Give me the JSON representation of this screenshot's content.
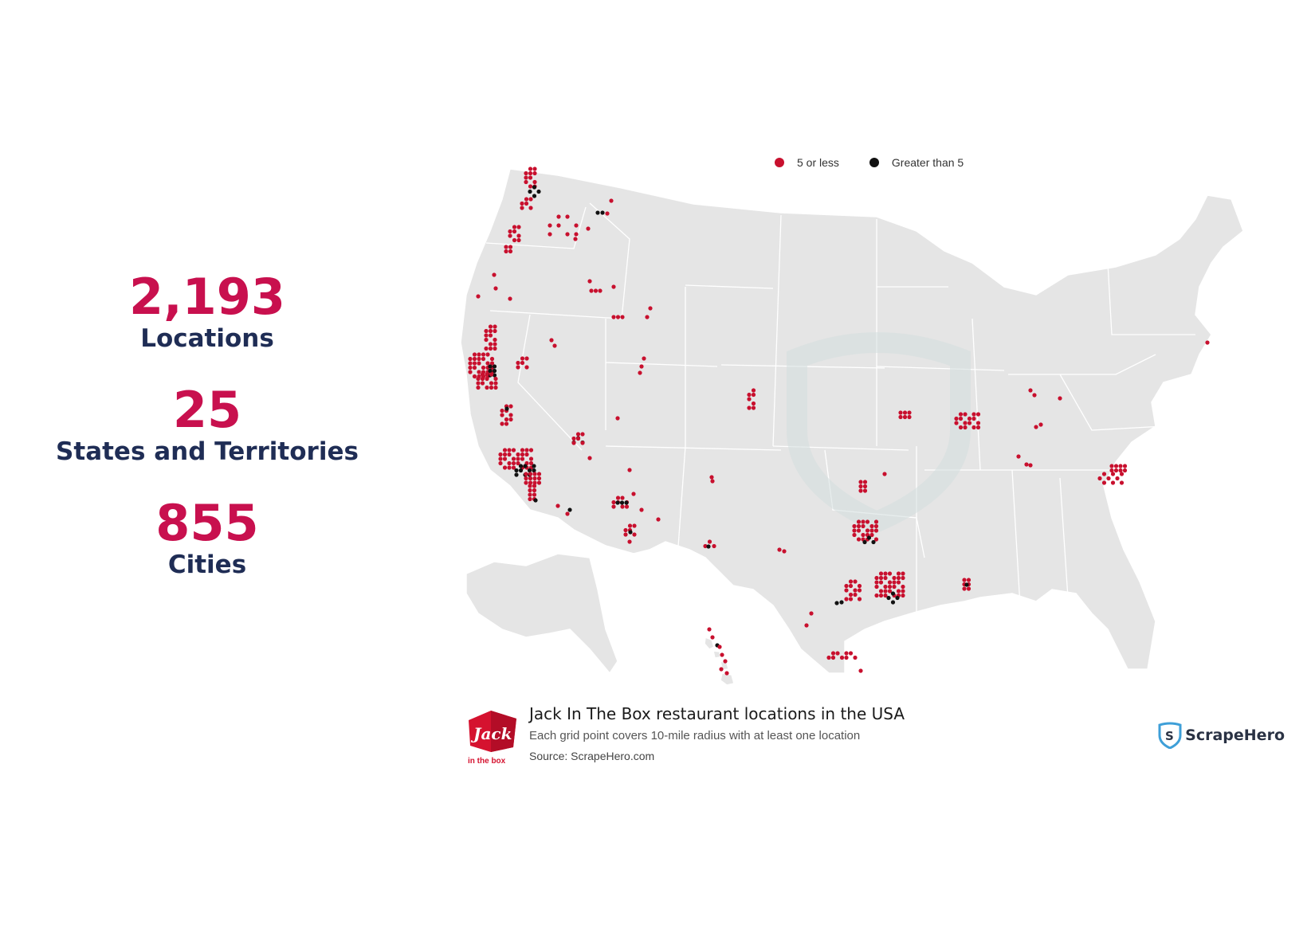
{
  "stats": {
    "locations": {
      "value": "2,193",
      "label": "Locations"
    },
    "states": {
      "value": "25",
      "label": "States and Territories"
    },
    "cities": {
      "value": "855",
      "label": "Cities"
    }
  },
  "legend": {
    "small": {
      "label": "5 or less",
      "color": "#c8102e"
    },
    "large": {
      "label": "Greater than 5",
      "color": "#111111"
    }
  },
  "caption": {
    "title": "Jack In The Box restaurant locations in the USA",
    "subtitle": "Each grid point covers 10-mile radius with at least one location",
    "source": "Source: ScrapeHero.com"
  },
  "brand": {
    "logo_line1": "Jack",
    "logo_line2": "in the box",
    "color": "#d5122f"
  },
  "credit": {
    "name": "ScrapeHero"
  },
  "map": {
    "land_color": "#e5e5e5",
    "border_color": "#ffffff",
    "clusters": [
      {
        "region": "Seattle-Tacoma, WA",
        "density": "high"
      },
      {
        "region": "Portland, OR",
        "density": "medium"
      },
      {
        "region": "Spokane, WA",
        "density": "low"
      },
      {
        "region": "Boise, ID",
        "density": "low"
      },
      {
        "region": "Sacramento / San Francisco Bay Area, CA",
        "density": "high"
      },
      {
        "region": "Fresno / Central Valley, CA",
        "density": "medium"
      },
      {
        "region": "Los Angeles / Inland Empire, CA",
        "density": "high"
      },
      {
        "region": "San Diego, CA",
        "density": "medium"
      },
      {
        "region": "Reno, NV",
        "density": "low"
      },
      {
        "region": "Las Vegas, NV",
        "density": "medium"
      },
      {
        "region": "Salt Lake City, UT",
        "density": "low"
      },
      {
        "region": "Phoenix, AZ",
        "density": "high"
      },
      {
        "region": "Tucson, AZ",
        "density": "medium"
      },
      {
        "region": "Denver / Colorado Springs, CO",
        "density": "low"
      },
      {
        "region": "Albuquerque, NM",
        "density": "low"
      },
      {
        "region": "El Paso, TX",
        "density": "low"
      },
      {
        "region": "Dallas-Fort Worth, TX",
        "density": "high"
      },
      {
        "region": "Houston, TX",
        "density": "high"
      },
      {
        "region": "San Antonio / Austin, TX",
        "density": "medium"
      },
      {
        "region": "Rio Grande Valley, TX",
        "density": "medium"
      },
      {
        "region": "Oklahoma City, OK",
        "density": "low"
      },
      {
        "region": "Kansas City, MO",
        "density": "low"
      },
      {
        "region": "St. Louis, MO",
        "density": "medium"
      },
      {
        "region": "Baton Rouge, LA",
        "density": "low"
      },
      {
        "region": "Indianapolis, IN",
        "density": "low"
      },
      {
        "region": "Louisville / Cincinnati",
        "density": "low"
      },
      {
        "region": "Nashville, TN",
        "density": "low"
      },
      {
        "region": "Charlotte, NC",
        "density": "medium"
      },
      {
        "region": "New York, NY",
        "density": "low"
      },
      {
        "region": "Hawaii",
        "density": "low"
      }
    ]
  }
}
